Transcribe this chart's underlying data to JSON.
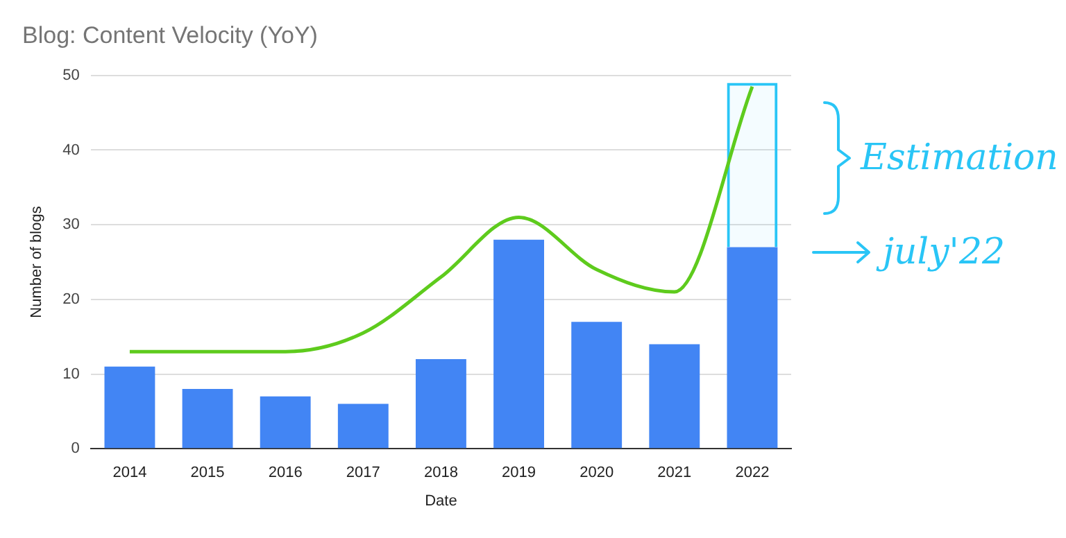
{
  "chart_data": {
    "type": "bar",
    "title": "Blog: Content Velocity (YoY)",
    "xlabel": "Date",
    "ylabel": "Number of blogs",
    "categories": [
      "2014",
      "2015",
      "2016",
      "2017",
      "2018",
      "2019",
      "2020",
      "2021",
      "2022"
    ],
    "stacked": true,
    "series": [
      {
        "color": "#4285f4",
        "values": [
          11,
          8,
          7,
          6,
          12,
          28,
          17,
          14,
          27
        ]
      },
      {
        "color": "#29c5f6",
        "values": [
          null,
          null,
          null,
          null,
          null,
          null,
          null,
          null,
          22
        ]
      },
      {
        "type": "line",
        "color": "#5ecb1d",
        "values": [
          13,
          13,
          13,
          15.5,
          23,
          31,
          24,
          21,
          48.5
        ]
      }
    ],
    "ylim": [
      0,
      50
    ],
    "yticks": [
      0,
      10,
      20,
      30,
      40,
      50
    ],
    "grid": "y",
    "annotations": [
      "Estimation",
      "july'22"
    ]
  }
}
